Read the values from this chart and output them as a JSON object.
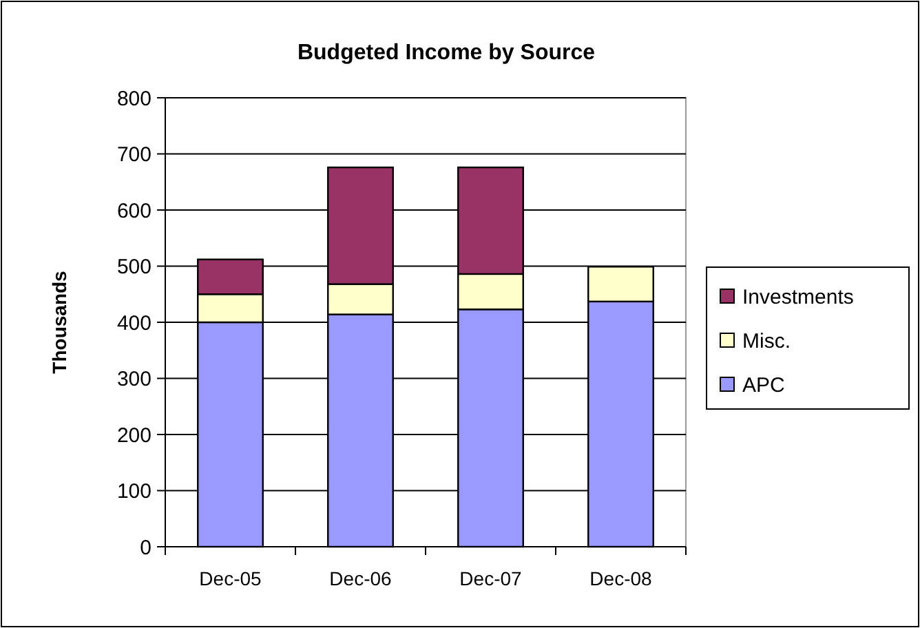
{
  "chart_data": {
    "type": "bar",
    "title": "Budgeted Income by Source",
    "ylabel": "Thousands",
    "categories": [
      "Dec-05",
      "Dec-06",
      "Dec-07",
      "Dec-08"
    ],
    "stacked": true,
    "series": [
      {
        "name": "APC",
        "color": "#9999ff",
        "values": [
          400,
          414,
          423,
          437
        ]
      },
      {
        "name": "Misc.",
        "color": "#ffffcc",
        "values": [
          50,
          54,
          63,
          62
        ]
      },
      {
        "name": "Investments",
        "color": "#993366",
        "values": [
          62,
          208,
          190,
          0
        ]
      }
    ],
    "ylim": [
      0,
      800
    ],
    "yticks": [
      0,
      100,
      200,
      300,
      400,
      500,
      600,
      700,
      800
    ],
    "grid": "y",
    "legend": "right"
  }
}
